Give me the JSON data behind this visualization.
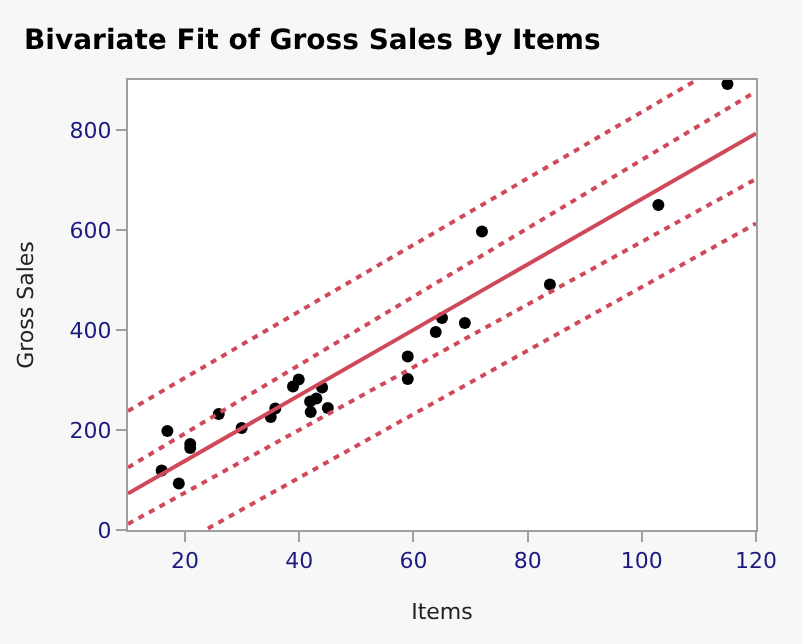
{
  "chart_data": {
    "type": "scatter",
    "title": "Bivariate Fit of Gross Sales By Items",
    "xlabel": "Items",
    "ylabel": "Gross Sales",
    "xlim": [
      10,
      120
    ],
    "xticks": [
      20,
      40,
      60,
      80,
      100,
      120
    ],
    "ylim": [
      0,
      900
    ],
    "yticks": [
      0,
      200,
      400,
      600,
      800
    ],
    "series": [
      {
        "color": "#000000",
        "marker": "circle",
        "x": [
          15.9,
          16.9,
          18.9,
          20.9,
          20.9,
          25.9,
          29.9,
          35.0,
          35.8,
          38.9,
          39.9,
          41.9,
          42.0,
          43.0,
          44.0,
          45.0,
          59.0,
          59.0,
          63.9,
          65.0,
          69.0,
          72.0,
          83.9,
          102.9,
          115.0
        ],
        "values": [
          119,
          198,
          93,
          172,
          164,
          232,
          204,
          226,
          243,
          287,
          301,
          257,
          236,
          263,
          285,
          244,
          347,
          302,
          396,
          424,
          414,
          597,
          491,
          650,
          892
        ]
      },
      {
        "type": "line",
        "color": "#d0495a",
        "line_style": "solid",
        "x": [
          10,
          120
        ],
        "values": [
          73,
          793
        ]
      },
      {
        "type": "line",
        "color": "#d0495a",
        "line_style": "dotted",
        "x": [
          10,
          120
        ],
        "values": [
          125,
          877
        ]
      },
      {
        "type": "line",
        "color": "#d0495a",
        "line_style": "dotted",
        "x": [
          10,
          120
        ],
        "values": [
          12,
          702
        ]
      },
      {
        "type": "line",
        "color": "#d0495a",
        "line_style": "dotted",
        "x": [
          10,
          109.3
        ],
        "values": [
          238,
          898
        ]
      },
      {
        "type": "line",
        "color": "#d0495a",
        "line_style": "dotted",
        "x": [
          24,
          120
        ],
        "values": [
          3,
          613
        ]
      }
    ]
  }
}
